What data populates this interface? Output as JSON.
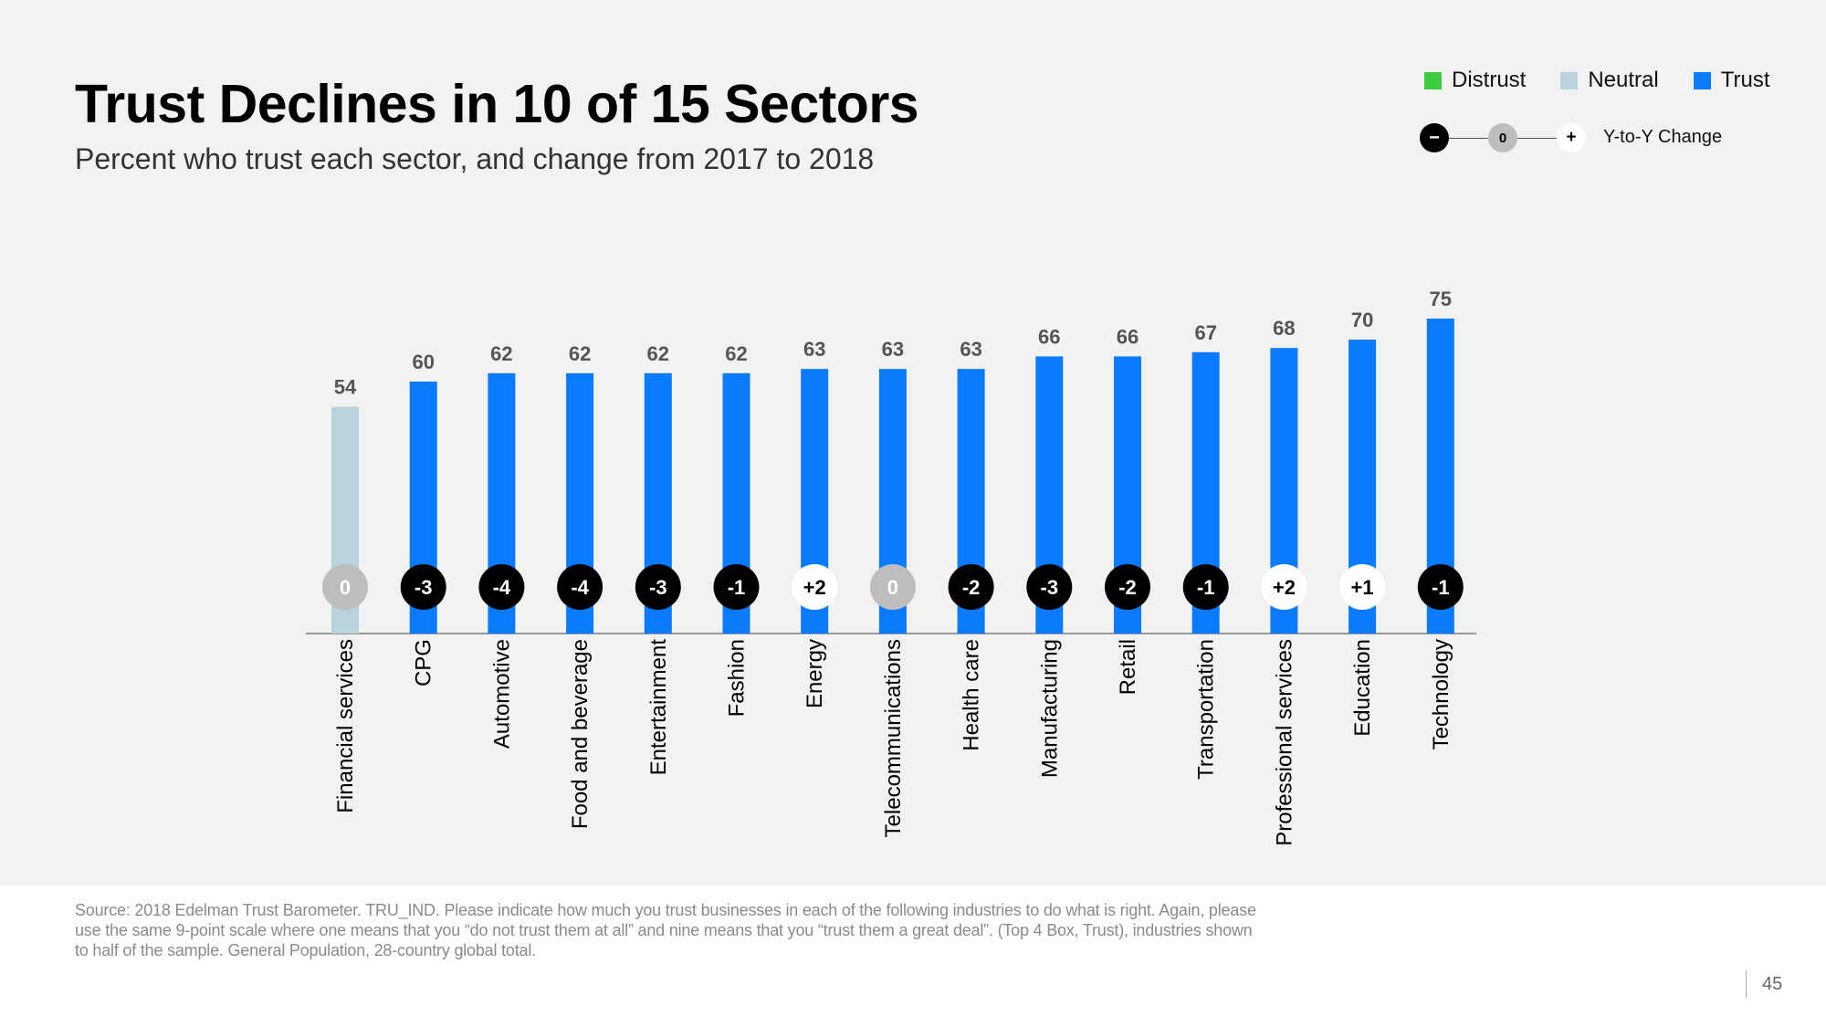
{
  "title": "Trust Declines in 10 of 15 Sectors",
  "subtitle": "Percent who trust each sector, and change from 2017 to 2018",
  "legend": {
    "items": [
      {
        "label": "Distrust",
        "color": "#3dcc3d"
      },
      {
        "label": "Neutral",
        "color": "#b9d3dd"
      },
      {
        "label": "Trust",
        "color": "#0a7aff"
      }
    ],
    "change_key": {
      "minus": "−",
      "zero": "0",
      "plus": "+",
      "label": "Y-to-Y Change"
    }
  },
  "chart_data": {
    "type": "bar",
    "categories": [
      "Financial services",
      "CPG",
      "Automotive",
      "Food and beverage",
      "Entertainment",
      "Fashion",
      "Energy",
      "Telecommunications",
      "Health care",
      "Manufacturing",
      "Retail",
      "Transportation",
      "Professional services",
      "Education",
      "Technology"
    ],
    "values": [
      54,
      60,
      62,
      62,
      62,
      62,
      63,
      63,
      63,
      66,
      66,
      67,
      68,
      70,
      75
    ],
    "bar_status": [
      "neutral",
      "trust",
      "trust",
      "trust",
      "trust",
      "trust",
      "trust",
      "trust",
      "trust",
      "trust",
      "trust",
      "trust",
      "trust",
      "trust",
      "trust"
    ],
    "changes": [
      "0",
      "-3",
      "-4",
      "-4",
      "-3",
      "-1",
      "+2",
      "0",
      "-2",
      "-3",
      "-2",
      "-1",
      "+2",
      "+1",
      "-1"
    ],
    "colors": {
      "trust": "#0a7aff",
      "neutral": "#b9d3dd",
      "distrust": "#3dcc3d",
      "negative_change": "#000000",
      "zero_change": "#bdbdbd",
      "positive_change": "#ffffff"
    }
  },
  "source": "Source: 2018 Edelman Trust Barometer. TRU_IND. Please indicate how much you trust businesses in each of the following industries to do what is right. Again, please use the same 9-point scale where one means that you “do not trust them at all” and nine means that you “trust them a great deal”. (Top 4 Box, Trust), industries shown to half of the sample. General Population, 28-country global total.",
  "page_number": "45"
}
